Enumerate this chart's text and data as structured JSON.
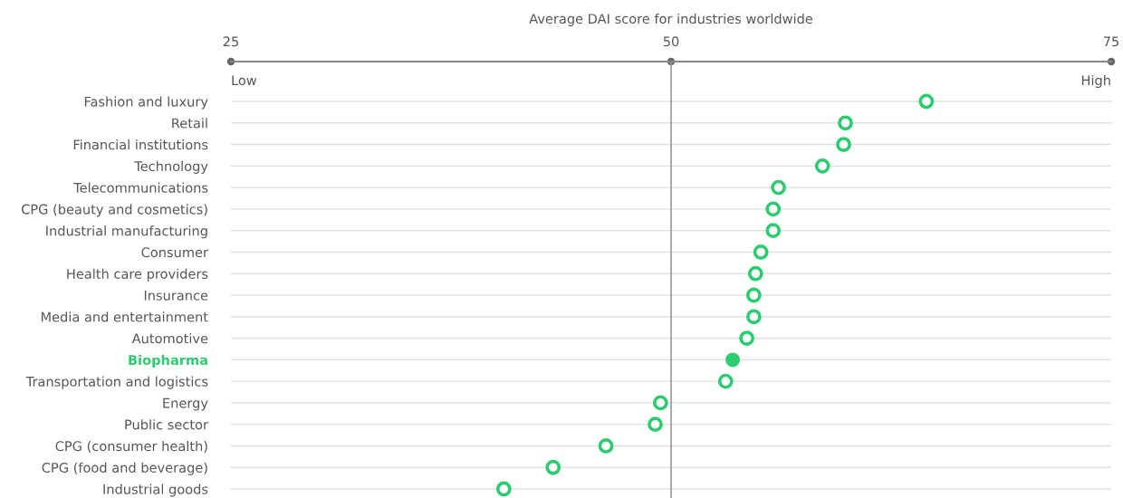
{
  "chart_data": {
    "type": "scatter",
    "title": "Average DAI score for industries worldwide",
    "categories": [
      "Fashion and luxury",
      "Retail",
      "Financial institutions",
      "Technology",
      "Telecommunications",
      "CPG (beauty and cosmetics)",
      "Industrial manufacturing",
      "Consumer",
      "Health care providers",
      "Insurance",
      "Media and entertainment",
      "Automotive",
      "Biopharma",
      "Transportation and logistics",
      "Energy",
      "Public sector",
      "CPG (consumer health)",
      "CPG (food and beverage)",
      "Industrial goods"
    ],
    "series": [
      {
        "color": "#2ecc71",
        "values": [
          64.5,
          59.9,
          59.8,
          58.6,
          56.1,
          55.8,
          55.8,
          55.1,
          54.8,
          54.7,
          54.7,
          54.3,
          null,
          53.1,
          49.4,
          49.1,
          46.3,
          43.3,
          40.5
        ]
      },
      {
        "color": "#2ecc71",
        "values": [
          null,
          null,
          null,
          null,
          null,
          null,
          null,
          null,
          null,
          null,
          null,
          null,
          53.5,
          null,
          null,
          null,
          null,
          null,
          null
        ]
      }
    ],
    "xlim": [
      25,
      75
    ],
    "xticks": [
      25,
      50,
      75
    ],
    "ref_lines": [
      {
        "axis": "x",
        "value": 50,
        "color": "#999999"
      }
    ],
    "annotations": [
      "Low",
      "High"
    ],
    "orientation": "horizontal",
    "grid": "y",
    "marker": "circle",
    "legend": false
  }
}
